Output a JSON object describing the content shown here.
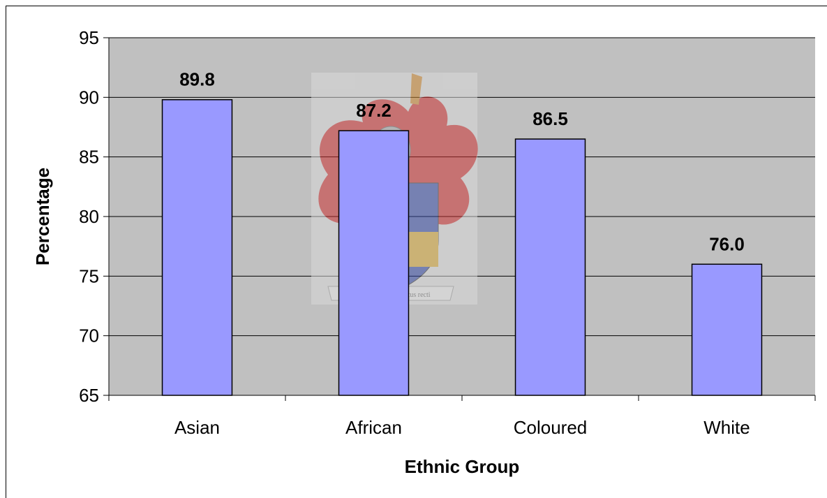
{
  "chart_data": {
    "type": "bar",
    "title": "",
    "xlabel": "Ethnic Group",
    "ylabel": "Percentage",
    "categories": [
      "Asian",
      "African",
      "Coloured",
      "White"
    ],
    "values": [
      89.8,
      87.2,
      86.5,
      76.0
    ],
    "data_labels": [
      "89.8",
      "87.2",
      "86.5",
      "76.0"
    ],
    "ylim": [
      65,
      95
    ],
    "yticks": [
      65,
      70,
      75,
      80,
      85,
      90,
      95
    ],
    "grid": true,
    "legend": "none",
    "colors": {
      "bar_fill": "#9999ff",
      "bar_stroke": "#000000",
      "plot_background": "#c0c0c0",
      "gridline": "#000000"
    }
  },
  "watermark": {
    "motto": "Pectora roborant cultus recti"
  }
}
